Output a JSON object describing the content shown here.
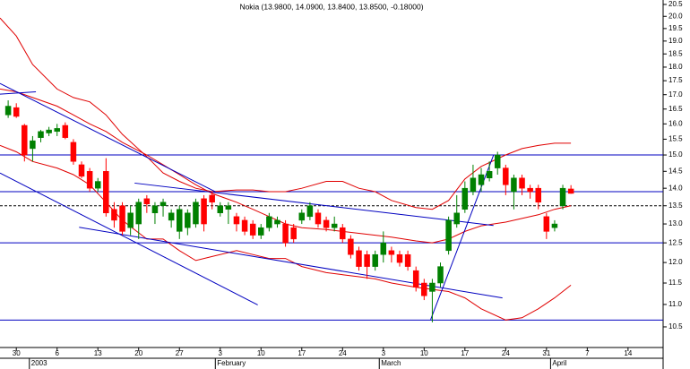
{
  "chart_data": {
    "type": "candlestick",
    "title": "Nokia (13.9800, 14.0900, 13.8400, 13.8500, -0.18000)",
    "up_color": "#008000",
    "down_color": "#ff0000",
    "log": true,
    "xlim": [
      -2,
      79.3
    ],
    "ylim": [
      10.06,
      20.69
    ],
    "xticks": [
      {
        "value": 0,
        "label": "30"
      },
      {
        "value": 5,
        "label": "6"
      },
      {
        "value": 10,
        "label": "13"
      },
      {
        "value": 15,
        "label": "20"
      },
      {
        "value": 20,
        "label": "27"
      },
      {
        "value": 25,
        "label": "3"
      },
      {
        "value": 30,
        "label": "10"
      },
      {
        "value": 35,
        "label": "17"
      },
      {
        "value": 40,
        "label": "24"
      },
      {
        "value": 45,
        "label": "3"
      },
      {
        "value": 50,
        "label": "10"
      },
      {
        "value": 55,
        "label": "17"
      },
      {
        "value": 60,
        "label": "24"
      },
      {
        "value": 65,
        "label": "31"
      },
      {
        "value": 70,
        "label": "7"
      },
      {
        "value": 75,
        "label": "14"
      }
    ],
    "period_labels": [
      {
        "value": 1.6,
        "label": "2003"
      },
      {
        "value": 24.4,
        "label": "February"
      },
      {
        "value": 44.5,
        "label": "March"
      },
      {
        "value": 65.5,
        "label": "April"
      }
    ],
    "yticks": [
      10.5,
      {
        "value": 11,
        "label": "11.0"
      },
      11.5,
      {
        "value": 12,
        "label": "12.0"
      },
      12.5,
      {
        "value": 13,
        "label": "13.0"
      },
      13.5,
      {
        "value": 14,
        "label": "14.0"
      },
      14.5,
      {
        "value": 15,
        "label": "15.0"
      },
      15.5,
      {
        "value": 16,
        "label": "16.0"
      },
      16.5,
      {
        "value": 17,
        "label": "17.0"
      },
      17.5,
      {
        "value": 18,
        "label": "18.0"
      },
      18.5,
      {
        "value": 19,
        "label": "19.0"
      },
      19.5,
      {
        "value": 20,
        "label": "20.0"
      },
      20.5
    ],
    "x": [
      -1,
      0,
      1,
      2,
      3,
      4,
      5,
      6,
      7,
      8,
      9,
      10,
      11,
      12,
      13,
      14,
      15,
      16,
      17,
      18,
      19,
      20,
      21,
      22,
      23,
      24,
      25,
      26,
      27,
      28,
      29,
      30,
      31,
      32,
      33,
      34,
      35,
      36,
      37,
      38,
      39,
      40,
      41,
      42,
      43,
      44,
      45,
      46,
      47,
      48,
      49,
      50,
      51,
      52,
      53,
      54,
      55,
      56,
      57,
      58,
      59,
      60,
      61,
      62,
      63,
      64,
      65,
      66,
      67,
      68
    ],
    "open": [
      16.3,
      16.55,
      15.95,
      15.2,
      15.55,
      15.7,
      15.75,
      15.95,
      15.4,
      14.7,
      14.5,
      14.0,
      14.5,
      13.4,
      13.5,
      12.9,
      13.0,
      13.7,
      13.3,
      13.5,
      13.1,
      12.8,
      12.9,
      13.0,
      13.7,
      13.8,
      13.3,
      13.4,
      13.2,
      13.1,
      13.0,
      12.7,
      12.9,
      13.0,
      13.0,
      12.9,
      13.1,
      13.2,
      13.3,
      13.1,
      12.9,
      12.9,
      12.6,
      12.3,
      12.2,
      11.9,
      12.2,
      12.3,
      12.2,
      12.2,
      11.8,
      11.5,
      11.3,
      11.5,
      12.3,
      13.0,
      13.4,
      13.9,
      14.1,
      14.3,
      14.6,
      14.6,
      13.9,
      14.3,
      14.0,
      14.0,
      13.2,
      12.9,
      13.5,
      13.98
    ],
    "high": [
      16.8,
      16.7,
      16.0,
      15.6,
      15.8,
      15.9,
      16.0,
      16.05,
      15.5,
      14.8,
      14.6,
      14.3,
      14.9,
      13.6,
      13.6,
      13.5,
      13.7,
      13.8,
      13.6,
      13.7,
      13.4,
      13.5,
      13.4,
      13.7,
      13.8,
      13.9,
      13.6,
      13.6,
      13.3,
      13.2,
      13.1,
      13.0,
      13.3,
      13.2,
      13.1,
      13.0,
      13.4,
      13.6,
      13.4,
      13.2,
      13.2,
      13.0,
      12.7,
      12.4,
      12.3,
      12.3,
      12.8,
      12.4,
      12.3,
      12.3,
      11.9,
      11.6,
      11.6,
      12.0,
      13.2,
      13.8,
      14.2,
      14.7,
      14.6,
      14.8,
      15.1,
      14.7,
      14.4,
      14.4,
      14.1,
      14.1,
      13.3,
      13.1,
      14.1,
      14.09
    ],
    "low": [
      16.2,
      16.2,
      14.8,
      14.8,
      15.4,
      15.6,
      15.6,
      15.5,
      14.7,
      14.3,
      13.9,
      13.9,
      13.2,
      12.9,
      12.7,
      12.7,
      12.6,
      13.3,
      13.0,
      13.2,
      12.9,
      12.6,
      12.7,
      12.9,
      12.8,
      13.4,
      13.2,
      13.0,
      12.8,
      12.7,
      12.6,
      12.6,
      12.8,
      12.9,
      12.4,
      12.5,
      13.0,
      13.1,
      12.9,
      12.8,
      12.8,
      12.5,
      12.1,
      11.8,
      11.6,
      11.8,
      12.0,
      12.0,
      11.9,
      11.8,
      11.3,
      11.1,
      10.6,
      11.4,
      12.2,
      12.9,
      13.3,
      13.8,
      13.9,
      14.2,
      14.4,
      13.8,
      13.4,
      13.8,
      13.7,
      13.4,
      12.6,
      12.8,
      13.4,
      13.84
    ],
    "close": [
      16.6,
      16.25,
      15.0,
      15.45,
      15.75,
      15.8,
      15.85,
      15.55,
      14.8,
      14.35,
      14.0,
      14.2,
      13.3,
      13.1,
      12.8,
      13.3,
      13.6,
      13.55,
      13.5,
      13.6,
      13.3,
      13.4,
      13.3,
      13.6,
      13.0,
      13.6,
      13.5,
      13.5,
      13.0,
      12.8,
      12.7,
      12.9,
      13.2,
      13.1,
      12.5,
      12.6,
      13.3,
      13.5,
      13.0,
      12.9,
      13.0,
      12.6,
      12.2,
      11.9,
      11.9,
      12.2,
      12.5,
      12.2,
      12.0,
      11.9,
      11.4,
      11.2,
      11.5,
      11.9,
      13.1,
      13.3,
      14.0,
      14.3,
      14.4,
      14.5,
      15.0,
      14.1,
      14.3,
      14.0,
      13.9,
      13.6,
      12.8,
      13.0,
      14.0,
      13.85
    ],
    "bands": [
      {
        "color": "#e00000",
        "x": [
          -2,
          0,
          2,
          5,
          7,
          9,
          11,
          13,
          16,
          18,
          20,
          22,
          24,
          27,
          29,
          31,
          33,
          35,
          38,
          40,
          42,
          44,
          46,
          49,
          51,
          53,
          55,
          57,
          60,
          62,
          64,
          66,
          68
        ],
        "values": [
          19.93,
          19.2,
          18.1,
          17.2,
          16.9,
          16.75,
          16.3,
          15.66,
          14.95,
          14.45,
          14.2,
          14.0,
          13.9,
          13.95,
          13.95,
          13.9,
          13.9,
          14.0,
          14.2,
          14.2,
          14.0,
          13.9,
          13.65,
          13.45,
          13.4,
          13.65,
          14.27,
          14.65,
          15.0,
          15.2,
          15.3,
          15.37,
          15.37
        ]
      },
      {
        "color": "#e00000",
        "x": [
          -2,
          0,
          2,
          5,
          7,
          9,
          11,
          13,
          16,
          18,
          20,
          22,
          24,
          27,
          29,
          31,
          33,
          35,
          38,
          40,
          42,
          44,
          46,
          49,
          51,
          53,
          55,
          57,
          60,
          62,
          64,
          66,
          68
        ],
        "values": [
          17.2,
          17.1,
          16.9,
          16.6,
          16.3,
          16.0,
          15.75,
          15.4,
          15.0,
          14.7,
          14.4,
          14.1,
          13.85,
          13.6,
          13.4,
          13.2,
          13.0,
          12.9,
          12.85,
          12.8,
          12.75,
          12.7,
          12.65,
          12.55,
          12.5,
          12.6,
          12.8,
          12.95,
          13.05,
          13.15,
          13.25,
          13.4,
          13.5
        ]
      },
      {
        "color": "#e00000",
        "x": [
          -2,
          0,
          2,
          5,
          7,
          9,
          11,
          13,
          16,
          18,
          20,
          22,
          24,
          27,
          29,
          31,
          33,
          35,
          38,
          40,
          42,
          44,
          46,
          49,
          51,
          53,
          55,
          57,
          60,
          62,
          64,
          66,
          68
        ],
        "values": [
          15.3,
          15.1,
          14.8,
          14.6,
          14.4,
          14.1,
          13.6,
          13.1,
          12.6,
          12.6,
          12.3,
          12.05,
          12.15,
          12.3,
          12.2,
          12.1,
          12.1,
          11.9,
          11.75,
          11.7,
          11.65,
          11.6,
          11.5,
          11.4,
          11.35,
          11.3,
          11.15,
          10.9,
          10.65,
          10.7,
          10.9,
          11.15,
          11.45
        ]
      }
    ],
    "trendlines": [
      {
        "color": "#0000c0",
        "x": [
          -2,
          2.4
        ],
        "y": [
          17.02,
          17.1
        ]
      },
      {
        "color": "#0000c0",
        "x": [
          -2,
          24.4
        ],
        "y": [
          17.4,
          13.9
        ]
      },
      {
        "color": "#0000c0",
        "x": [
          -2,
          29.6
        ],
        "y": [
          14.45,
          10.99
        ]
      },
      {
        "color": "#0000c0",
        "x": [
          14.5,
          58.5
        ],
        "y": [
          14.15,
          12.96
        ]
      },
      {
        "color": "#0000c0",
        "x": [
          7.7,
          59.6
        ],
        "y": [
          12.91,
          11.15
        ]
      },
      {
        "color": "#0000c0",
        "x": [
          50.8,
          58.5
        ],
        "y": [
          10.66,
          14.99
        ]
      }
    ],
    "levels": [
      15.0,
      13.9,
      12.5,
      10.65
    ],
    "dashed_levels": [
      13.5
    ],
    "level_color": "#0000c0"
  }
}
